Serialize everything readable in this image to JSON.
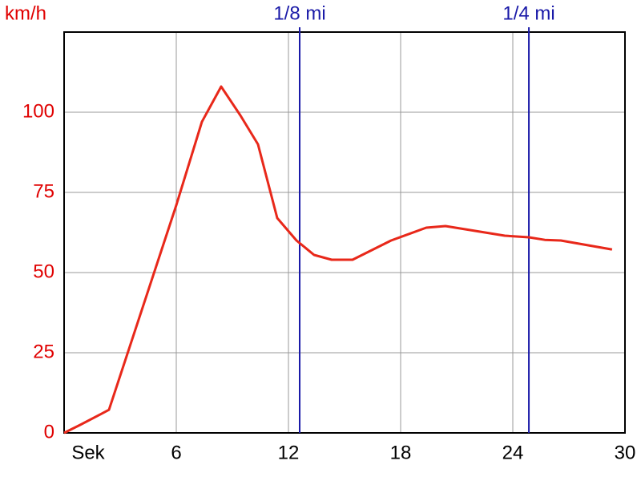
{
  "chart_data": {
    "type": "line",
    "y_label": "km/h",
    "x": [
      0,
      0.86,
      2.4,
      6,
      7.37,
      8.4,
      9.43,
      10.37,
      11.4,
      12.43,
      13.37,
      14.31,
      15.43,
      17.49,
      19.37,
      20.4,
      23.57,
      24.86,
      25.71,
      26.57,
      29.31
    ],
    "series": [
      {
        "name": "km/h",
        "color": "#e8281a",
        "values": [
          0,
          2.5,
          7.2,
          71,
          97,
          108,
          99,
          90,
          67,
          60,
          55.5,
          54,
          54,
          60,
          64,
          64.5,
          61.5,
          61,
          60.2,
          60,
          57.2
        ]
      }
    ],
    "xlim": [
      0,
      30
    ],
    "xticks": [
      {
        "value": 0,
        "label": "Sek"
      },
      6,
      12,
      18,
      24,
      30
    ],
    "ylim": [
      0,
      125
    ],
    "yticks": [
      0,
      25,
      50,
      75,
      100
    ],
    "grid": true,
    "markers": [
      {
        "label": "1/8 mi",
        "x": 12.6,
        "color": "#1a1aa8"
      },
      {
        "label": "1/4 mi",
        "x": 24.86,
        "color": "#1a1aa8"
      }
    ]
  }
}
